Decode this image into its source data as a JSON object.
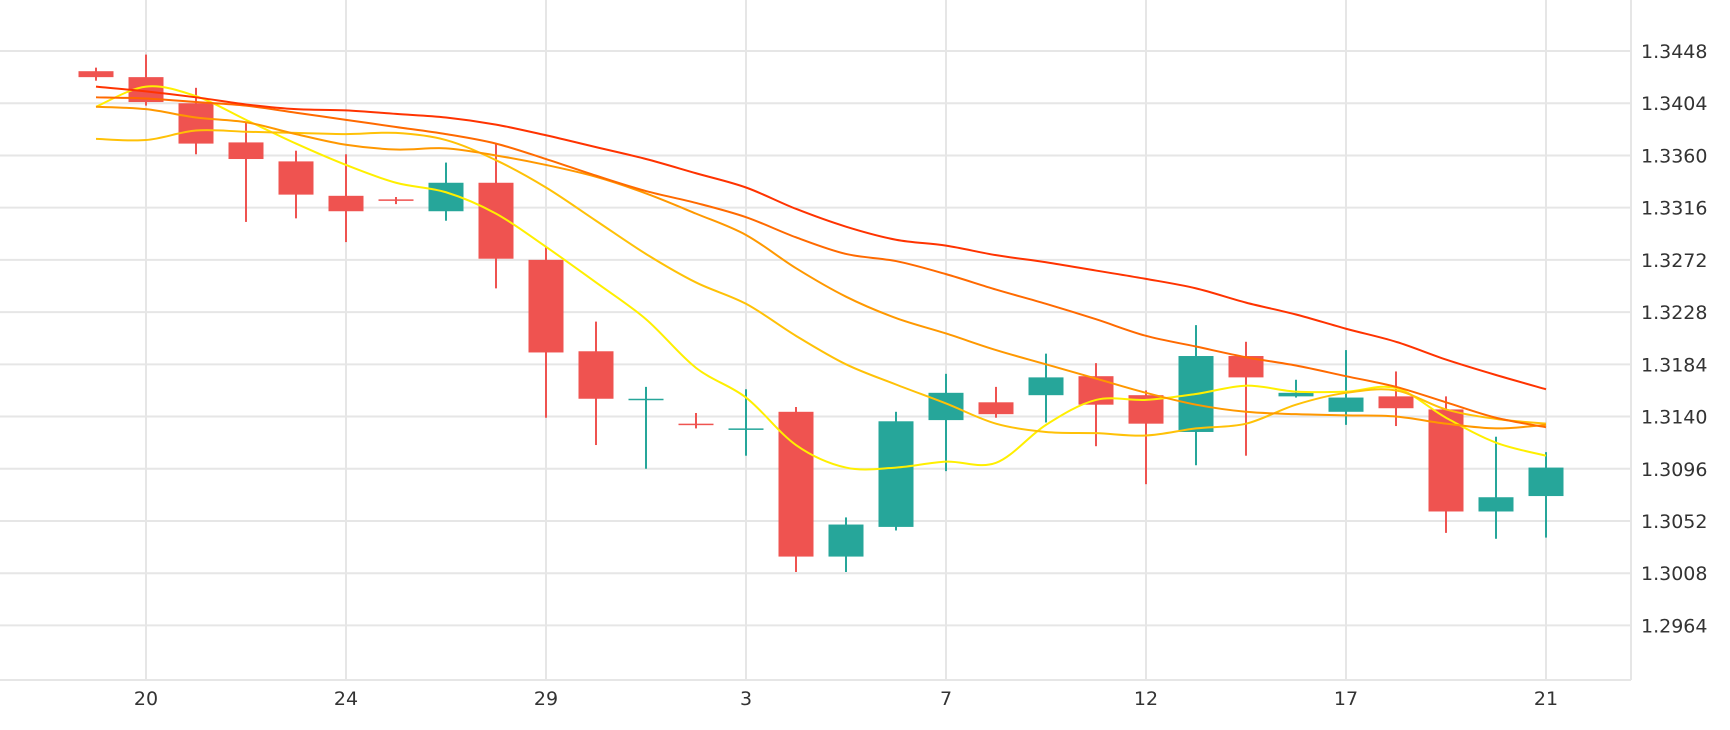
{
  "chart_data": {
    "type": "candlestick",
    "title": "",
    "xlabel": "",
    "ylabel": "",
    "grid": true,
    "ylim": [
      1.2918,
      1.3491
    ],
    "xlim": [
      -1.92,
      30.7
    ],
    "y_ticks": [
      "1.3448",
      "1.3404",
      "1.3360",
      "1.3316",
      "1.3272",
      "1.3228",
      "1.3184",
      "1.3140",
      "1.3096",
      "1.3052",
      "1.3008",
      "1.2964"
    ],
    "x_ticks": [
      {
        "index": 1,
        "label": "20"
      },
      {
        "index": 5,
        "label": "24"
      },
      {
        "index": 9,
        "label": "29"
      },
      {
        "index": 13,
        "label": "3"
      },
      {
        "index": 17,
        "label": "7"
      },
      {
        "index": 21,
        "label": "12"
      },
      {
        "index": 25,
        "label": "17"
      },
      {
        "index": 29,
        "label": "21"
      }
    ],
    "colors": {
      "up": "#26a69a",
      "down": "#ef5350",
      "grid": "#e6e6e6"
    },
    "candles": [
      {
        "o": 1.3431,
        "h": 1.3434,
        "l": 1.3423,
        "c": 1.3426
      },
      {
        "o": 1.3426,
        "h": 1.3445,
        "l": 1.3402,
        "c": 1.3405
      },
      {
        "o": 1.3404,
        "h": 1.3417,
        "l": 1.3361,
        "c": 1.337
      },
      {
        "o": 1.3371,
        "h": 1.3388,
        "l": 1.3304,
        "c": 1.3357
      },
      {
        "o": 1.3355,
        "h": 1.3364,
        "l": 1.3307,
        "c": 1.3327
      },
      {
        "o": 1.3326,
        "h": 1.3361,
        "l": 1.3287,
        "c": 1.3313
      },
      {
        "o": 1.3323,
        "h": 1.3325,
        "l": 1.3319,
        "c": 1.3322
      },
      {
        "o": 1.3313,
        "h": 1.3354,
        "l": 1.3305,
        "c": 1.3337
      },
      {
        "o": 1.3337,
        "h": 1.337,
        "l": 1.3248,
        "c": 1.3273
      },
      {
        "o": 1.3272,
        "h": 1.3283,
        "l": 1.3139,
        "c": 1.3194
      },
      {
        "o": 1.3195,
        "h": 1.322,
        "l": 1.3116,
        "c": 1.3155
      },
      {
        "o": 1.3154,
        "h": 1.3165,
        "l": 1.3096,
        "c": 1.3155
      },
      {
        "o": 1.3134,
        "h": 1.3143,
        "l": 1.313,
        "c": 1.3133
      },
      {
        "o": 1.313,
        "h": 1.3163,
        "l": 1.3107,
        "c": 1.313
      },
      {
        "o": 1.3144,
        "h": 1.3148,
        "l": 1.3009,
        "c": 1.3022
      },
      {
        "o": 1.3022,
        "h": 1.3055,
        "l": 1.3009,
        "c": 1.3049
      },
      {
        "o": 1.3047,
        "h": 1.3144,
        "l": 1.3044,
        "c": 1.3136
      },
      {
        "o": 1.3137,
        "h": 1.3176,
        "l": 1.3094,
        "c": 1.316
      },
      {
        "o": 1.3152,
        "h": 1.3165,
        "l": 1.3139,
        "c": 1.3142
      },
      {
        "o": 1.3158,
        "h": 1.3193,
        "l": 1.3135,
        "c": 1.3173
      },
      {
        "o": 1.3174,
        "h": 1.3185,
        "l": 1.3115,
        "c": 1.315
      },
      {
        "o": 1.3158,
        "h": 1.3162,
        "l": 1.3083,
        "c": 1.3134
      },
      {
        "o": 1.3127,
        "h": 1.3217,
        "l": 1.3099,
        "c": 1.3191
      },
      {
        "o": 1.3191,
        "h": 1.3203,
        "l": 1.3107,
        "c": 1.3173
      },
      {
        "o": 1.3157,
        "h": 1.3171,
        "l": 1.3156,
        "c": 1.316
      },
      {
        "o": 1.3144,
        "h": 1.3196,
        "l": 1.3133,
        "c": 1.3156
      },
      {
        "o": 1.3157,
        "h": 1.3178,
        "l": 1.3132,
        "c": 1.3147
      },
      {
        "o": 1.3146,
        "h": 1.3157,
        "l": 1.3042,
        "c": 1.306
      },
      {
        "o": 1.306,
        "h": 1.3123,
        "l": 1.3037,
        "c": 1.3072
      },
      {
        "o": 1.3073,
        "h": 1.311,
        "l": 1.3038,
        "c": 1.3097
      }
    ],
    "series": [
      {
        "name": "ma-yellow",
        "color": "#ffef00",
        "values": [
          1.3401,
          1.3418,
          1.341,
          1.339,
          1.337,
          1.3352,
          1.3337,
          1.3329,
          1.3311,
          1.3283,
          1.3253,
          1.3222,
          1.3181,
          1.3156,
          1.3116,
          1.3097,
          1.3097,
          1.3102,
          1.3101,
          1.3133,
          1.3154,
          1.3154,
          1.3159,
          1.3166,
          1.3161,
          1.3161,
          1.3164,
          1.3139,
          1.3118,
          1.3107
        ]
      },
      {
        "name": "ma-gold",
        "color": "#ffc107",
        "values": [
          1.3374,
          1.3373,
          1.3381,
          1.338,
          1.3379,
          1.3378,
          1.3379,
          1.3373,
          1.3356,
          1.3333,
          1.3305,
          1.3277,
          1.3253,
          1.3235,
          1.3208,
          1.3184,
          1.3167,
          1.3151,
          1.3134,
          1.3127,
          1.3126,
          1.3124,
          1.313,
          1.3134,
          1.315,
          1.316,
          1.3162,
          1.3146,
          1.3138,
          1.3134
        ]
      },
      {
        "name": "ma-orange",
        "color": "#ff9800",
        "values": [
          1.3401,
          1.3399,
          1.3392,
          1.3388,
          1.3378,
          1.3369,
          1.3365,
          1.3366,
          1.336,
          1.3352,
          1.3342,
          1.3328,
          1.3311,
          1.3293,
          1.3265,
          1.3241,
          1.3223,
          1.321,
          1.3196,
          1.3184,
          1.3172,
          1.316,
          1.315,
          1.3144,
          1.3142,
          1.3141,
          1.314,
          1.3134,
          1.313,
          1.3133
        ]
      },
      {
        "name": "ma-dark-orange",
        "color": "#ff6a00",
        "values": [
          1.3409,
          1.3408,
          1.3405,
          1.3402,
          1.3396,
          1.339,
          1.3384,
          1.3378,
          1.337,
          1.3357,
          1.3343,
          1.333,
          1.332,
          1.3308,
          1.3291,
          1.3277,
          1.3271,
          1.326,
          1.3247,
          1.3235,
          1.3222,
          1.3208,
          1.3199,
          1.319,
          1.3183,
          1.3174,
          1.3165,
          1.3152,
          1.3139,
          1.3131
        ]
      },
      {
        "name": "ma-red",
        "color": "#ff3300",
        "values": [
          1.3418,
          1.3414,
          1.3409,
          1.3403,
          1.3399,
          1.3398,
          1.3395,
          1.3392,
          1.3386,
          1.3377,
          1.3367,
          1.3357,
          1.3345,
          1.3333,
          1.3315,
          1.33,
          1.3289,
          1.3284,
          1.3276,
          1.327,
          1.3263,
          1.3256,
          1.3248,
          1.3236,
          1.3226,
          1.3214,
          1.3203,
          1.3188,
          1.3175,
          1.3163
        ]
      }
    ]
  }
}
